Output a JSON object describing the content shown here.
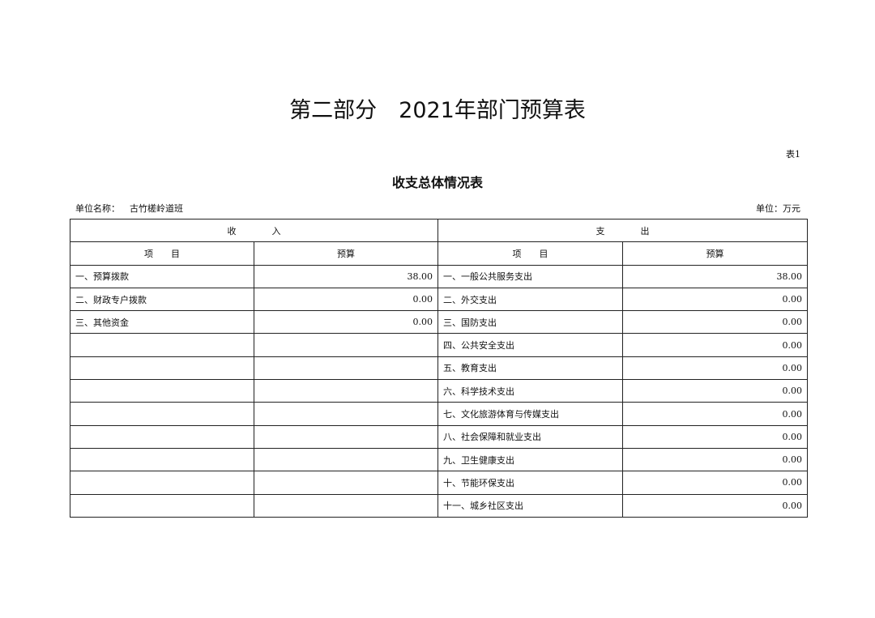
{
  "title": "第二部分　2021年部门预算表",
  "table_no": "表1",
  "subtitle": "收支总体情况表",
  "unit_name_label": "单位名称：",
  "unit_name": "古竹槎岭道班",
  "unit": "单位：万元",
  "headers": {
    "income": "收　　　　入",
    "expense": "支　　　　出",
    "item": "项　　目",
    "budget": "预算"
  },
  "rows": [
    {
      "income_item": "一、预算拨款",
      "income_budget": "38.00",
      "expense_item": "一、一般公共服务支出",
      "expense_budget": "38.00"
    },
    {
      "income_item": "二、财政专户拨款",
      "income_budget": "0.00",
      "expense_item": "二、外交支出",
      "expense_budget": "0.00"
    },
    {
      "income_item": "三、其他资金",
      "income_budget": "0.00",
      "expense_item": "三、国防支出",
      "expense_budget": "0.00"
    },
    {
      "income_item": "",
      "income_budget": "",
      "expense_item": "四、公共安全支出",
      "expense_budget": "0.00"
    },
    {
      "income_item": "",
      "income_budget": "",
      "expense_item": "五、教育支出",
      "expense_budget": "0.00"
    },
    {
      "income_item": "",
      "income_budget": "",
      "expense_item": "六、科学技术支出",
      "expense_budget": "0.00"
    },
    {
      "income_item": "",
      "income_budget": "",
      "expense_item": "七、文化旅游体育与传媒支出",
      "expense_budget": "0.00"
    },
    {
      "income_item": "",
      "income_budget": "",
      "expense_item": "八、社会保障和就业支出",
      "expense_budget": "0.00"
    },
    {
      "income_item": "",
      "income_budget": "",
      "expense_item": "九、卫生健康支出",
      "expense_budget": "0.00"
    },
    {
      "income_item": "",
      "income_budget": "",
      "expense_item": "十、节能环保支出",
      "expense_budget": "0.00"
    },
    {
      "income_item": "",
      "income_budget": "",
      "expense_item": "十一、城乡社区支出",
      "expense_budget": "0.00"
    }
  ]
}
